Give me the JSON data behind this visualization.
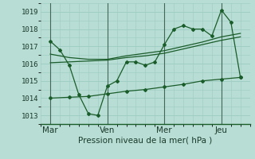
{
  "bg_color": "#b8ddd4",
  "grid_color": "#9dccc2",
  "line_color": "#1a5c2a",
  "marker_color": "#1a5c2a",
  "ylabel": "Pression niveau de la mer( hPa )",
  "ylim": [
    1012.5,
    1019.5
  ],
  "yticks": [
    1013,
    1014,
    1015,
    1016,
    1017,
    1018,
    1019
  ],
  "xtick_labels": [
    "Mar",
    "Ven",
    "Mer",
    "Jeu"
  ],
  "xtick_positions": [
    1,
    4,
    7,
    10
  ],
  "vline_positions": [
    1,
    4,
    7,
    10
  ],
  "series1_x": [
    1,
    1.5,
    2,
    2.5,
    3,
    3.5,
    4,
    4.5,
    5,
    5.5,
    6,
    6.5,
    7,
    7.5,
    8,
    8.5,
    9,
    9.5,
    10,
    10.5,
    11
  ],
  "series1_y": [
    1017.3,
    1016.8,
    1015.9,
    1014.2,
    1013.1,
    1013.0,
    1014.7,
    1015.0,
    1016.1,
    1016.1,
    1015.9,
    1016.1,
    1017.1,
    1018.0,
    1018.2,
    1018.0,
    1018.0,
    1017.6,
    1019.1,
    1018.4,
    1015.2
  ],
  "series2_x": [
    1,
    2,
    3,
    4,
    5,
    6,
    7,
    8,
    9,
    10,
    11
  ],
  "series2_y": [
    1016.05,
    1016.1,
    1016.15,
    1016.2,
    1016.35,
    1016.45,
    1016.6,
    1016.85,
    1017.1,
    1017.35,
    1017.55
  ],
  "series3_x": [
    1,
    2,
    3,
    4,
    5,
    6,
    7,
    8,
    9,
    10,
    11
  ],
  "series3_y": [
    1016.55,
    1016.35,
    1016.25,
    1016.25,
    1016.45,
    1016.6,
    1016.75,
    1017.0,
    1017.25,
    1017.55,
    1017.75
  ],
  "series4_x": [
    1,
    2,
    3,
    4,
    5,
    6,
    7,
    8,
    9,
    10,
    11
  ],
  "series4_y": [
    1014.0,
    1014.05,
    1014.1,
    1014.25,
    1014.4,
    1014.5,
    1014.65,
    1014.8,
    1015.0,
    1015.1,
    1015.2
  ]
}
